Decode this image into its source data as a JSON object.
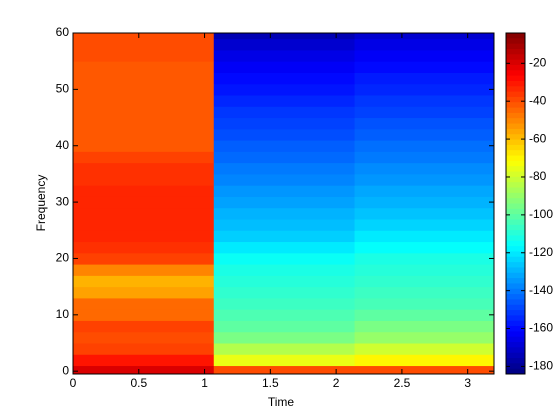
{
  "chart_data": {
    "type": "heatmap",
    "xlabel": "Time",
    "ylabel": "Frequency",
    "x": [
      0.535,
      1.605,
      2.675
    ],
    "y": [
      0,
      2,
      4,
      6,
      8,
      10,
      12,
      14,
      16,
      18,
      20,
      22,
      24,
      26,
      28,
      30,
      32,
      34,
      36,
      38,
      40,
      42,
      44,
      46,
      48,
      50,
      52,
      54,
      56,
      58,
      60
    ],
    "z": [
      [
        -20,
        -40,
        -40
      ],
      [
        -30,
        -75,
        -70
      ],
      [
        -38,
        -85,
        -80
      ],
      [
        -40,
        -95,
        -90
      ],
      [
        -38,
        -100,
        -95
      ],
      [
        -45,
        -103,
        -100
      ],
      [
        -45,
        -106,
        -104
      ],
      [
        -55,
        -108,
        -106
      ],
      [
        -58,
        -110,
        -108
      ],
      [
        -50,
        -112,
        -110
      ],
      [
        -38,
        -115,
        -112
      ],
      [
        -35,
        -120,
        -116
      ],
      [
        -33,
        -125,
        -120
      ],
      [
        -33,
        -128,
        -124
      ],
      [
        -33,
        -130,
        -127
      ],
      [
        -33,
        -133,
        -130
      ],
      [
        -33,
        -135,
        -132
      ],
      [
        -35,
        -138,
        -135
      ],
      [
        -35,
        -140,
        -137
      ],
      [
        -38,
        -143,
        -140
      ],
      [
        -42,
        -145,
        -142
      ],
      [
        -42,
        -148,
        -145
      ],
      [
        -42,
        -150,
        -147
      ],
      [
        -42,
        -152,
        -150
      ],
      [
        -42,
        -155,
        -152
      ],
      [
        -42,
        -158,
        -155
      ],
      [
        -42,
        -160,
        -157
      ],
      [
        -42,
        -163,
        -160
      ],
      [
        -40,
        -166,
        -163
      ],
      [
        -40,
        -170,
        -166
      ],
      [
        -40,
        -175,
        -170
      ]
    ],
    "xlim": [
      0,
      3.2
    ],
    "xticks": [
      0,
      0.5,
      1,
      1.5,
      2,
      2.5,
      3
    ],
    "ylim": [
      -0.5,
      60
    ],
    "yticks": [
      0,
      10,
      20,
      30,
      40,
      50,
      60
    ],
    "clim": [
      -184,
      -4
    ],
    "cticks": [
      -180,
      -160,
      -140,
      -120,
      -100,
      -80,
      -60,
      -40,
      -20
    ],
    "colormap": "jet"
  }
}
